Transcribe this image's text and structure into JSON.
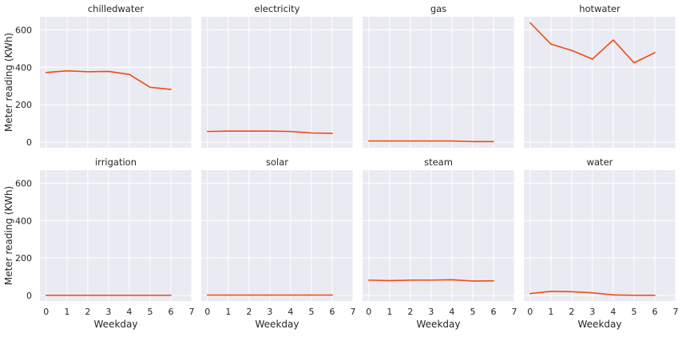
{
  "chart_data": {
    "type": "line",
    "layout": "facet-grid-2x4",
    "xlabel": "Weekday",
    "ylabel": "Meter reading (KWh)",
    "xlim": [
      -0.3,
      7
    ],
    "ylim": [
      -30,
      670
    ],
    "x_ticks": [
      0,
      1,
      2,
      3,
      4,
      5,
      6,
      7
    ],
    "y_ticks": [
      0,
      200,
      400,
      600
    ],
    "grid": true,
    "line_color": "#f04a0f",
    "panel_background": "#eaeaf2",
    "x": [
      0,
      1,
      2,
      3,
      4,
      5,
      6
    ],
    "panels": [
      {
        "title": "chilledwater",
        "values": [
          372,
          381,
          376,
          378,
          362,
          293,
          282
        ]
      },
      {
        "title": "electricity",
        "values": [
          57,
          59,
          59,
          59,
          57,
          49,
          47
        ]
      },
      {
        "title": "gas",
        "values": [
          6,
          6,
          6,
          6,
          6,
          3,
          3
        ]
      },
      {
        "title": "hotwater",
        "values": [
          638,
          524,
          490,
          444,
          546,
          424,
          478
        ]
      },
      {
        "title": "irrigation",
        "values": [
          1,
          1,
          1,
          1,
          1,
          1,
          1
        ]
      },
      {
        "title": "solar",
        "values": [
          2,
          2,
          2,
          2,
          2,
          2,
          2
        ]
      },
      {
        "title": "steam",
        "values": [
          82,
          79,
          82,
          82,
          84,
          77,
          78
        ]
      },
      {
        "title": "water",
        "values": [
          10,
          22,
          20,
          14,
          3,
          1,
          1
        ]
      }
    ]
  }
}
